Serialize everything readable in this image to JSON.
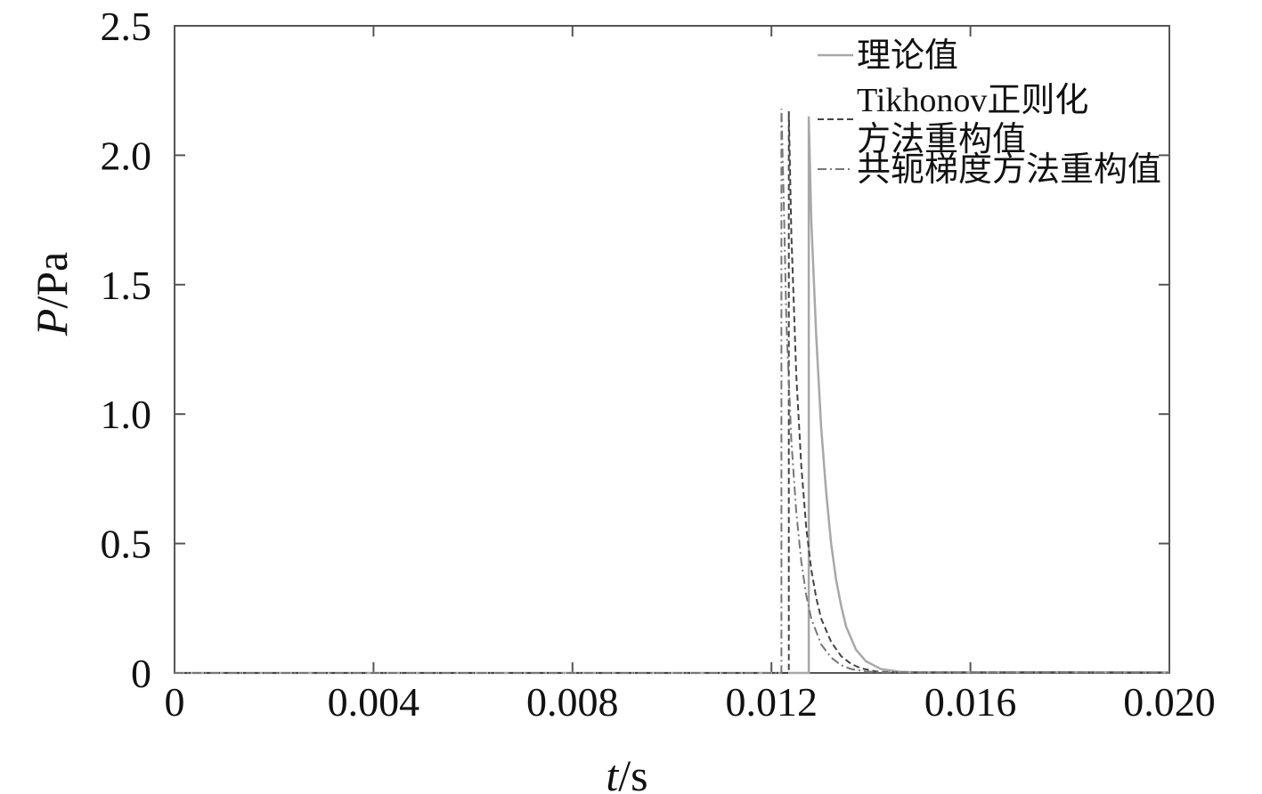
{
  "chart_data": {
    "type": "line",
    "title": "",
    "xlabel_var": "t",
    "xlabel_unit": "/s",
    "ylabel_var": "P",
    "ylabel_unit": "/Pa",
    "xlim": [
      0,
      0.02
    ],
    "ylim": [
      0,
      2.5
    ],
    "x_ticks": [
      0,
      0.004,
      0.008,
      0.012,
      0.016,
      0.02
    ],
    "x_tick_labels": [
      "0",
      "0.004",
      "0.008",
      "0.012",
      "0.016",
      "0.020"
    ],
    "y_ticks": [
      0,
      0.5,
      1.0,
      1.5,
      2.0,
      2.5
    ],
    "y_tick_labels": [
      "0",
      "0.5",
      "1.0",
      "1.5",
      "2.0",
      "2.5"
    ],
    "grid": false,
    "legend_position": "top-right",
    "series": [
      {
        "name": "理论值",
        "legend_lines": [
          "理论值"
        ],
        "style": "solid",
        "color": "#a8a8a8",
        "x": [
          0,
          0.01275,
          0.01275,
          0.0128,
          0.0129,
          0.013,
          0.0131,
          0.0132,
          0.0133,
          0.0134,
          0.0135,
          0.0137,
          0.0139,
          0.0142,
          0.0146,
          0.015,
          0.016,
          0.018,
          0.02
        ],
        "y": [
          0,
          0,
          2.15,
          1.75,
          1.3,
          0.95,
          0.7,
          0.5,
          0.36,
          0.26,
          0.18,
          0.09,
          0.045,
          0.015,
          0.004,
          0.002,
          0.002,
          0.003,
          0.002
        ]
      },
      {
        "name": "Tikhonov正则化方法重构值",
        "legend_lines": [
          "Tikhonov正则化",
          "方法重构值"
        ],
        "style": "dashed",
        "color": "#444444",
        "x": [
          0,
          0.01235,
          0.01235,
          0.0124,
          0.0125,
          0.0126,
          0.0127,
          0.0128,
          0.0129,
          0.013,
          0.0132,
          0.0134,
          0.0136,
          0.0138,
          0.0141,
          0.0145,
          0.016,
          0.018,
          0.02
        ],
        "y": [
          0,
          0,
          2.17,
          1.7,
          1.15,
          0.8,
          0.56,
          0.4,
          0.29,
          0.21,
          0.12,
          0.065,
          0.035,
          0.018,
          0.006,
          0.002,
          0.002,
          0.002,
          0.001
        ]
      },
      {
        "name": "共轭梯度方法重构值",
        "legend_lines": [
          "共轭梯度方法重构值"
        ],
        "style": "dashdot",
        "color": "#777777",
        "x": [
          0,
          0.0122,
          0.0122,
          0.01225,
          0.0123,
          0.0124,
          0.0125,
          0.0126,
          0.0127,
          0.0128,
          0.013,
          0.0132,
          0.0134,
          0.0136,
          0.0139,
          0.0143,
          0.016,
          0.018,
          0.02
        ],
        "y": [
          0,
          0,
          2.18,
          1.8,
          1.35,
          0.9,
          0.62,
          0.43,
          0.3,
          0.21,
          0.11,
          0.06,
          0.03,
          0.015,
          0.005,
          0.002,
          0.002,
          0.002,
          0.001
        ]
      }
    ]
  }
}
